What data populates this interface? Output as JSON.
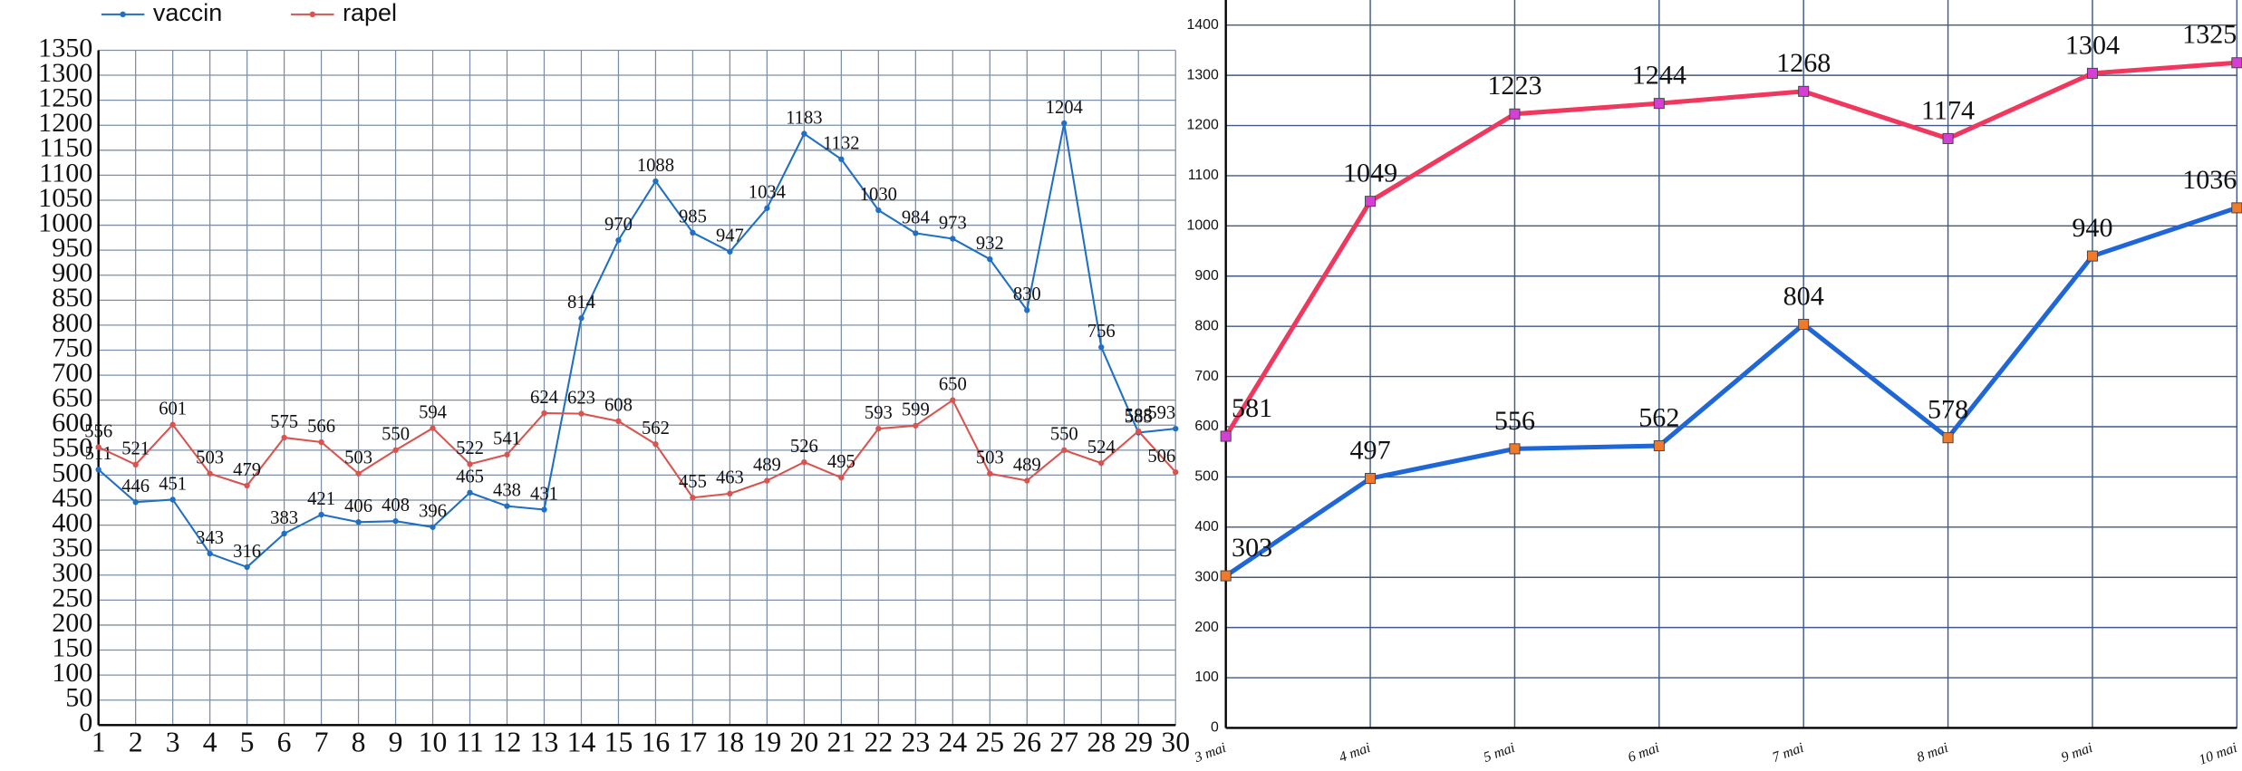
{
  "chart_data": [
    {
      "type": "line",
      "categories": [
        "1",
        "2",
        "3",
        "4",
        "5",
        "6",
        "7",
        "8",
        "9",
        "10",
        "11",
        "12",
        "13",
        "14",
        "15",
        "16",
        "17",
        "18",
        "19",
        "20",
        "21",
        "22",
        "23",
        "24",
        "25",
        "26",
        "27",
        "28",
        "29",
        "30"
      ],
      "series": [
        {
          "name": "vaccin",
          "color": "#1f6fc5",
          "values": [
            511,
            446,
            451,
            343,
            316,
            383,
            421,
            406,
            408,
            396,
            465,
            438,
            431,
            814,
            970,
            1088,
            985,
            947,
            1034,
            1183,
            1132,
            1030,
            984,
            973,
            932,
            830,
            1204,
            756,
            585,
            593
          ]
        },
        {
          "name": "rapel",
          "color": "#d9534f",
          "values": [
            556,
            521,
            601,
            503,
            479,
            575,
            566,
            503,
            550,
            594,
            522,
            541,
            624,
            623,
            608,
            562,
            455,
            463,
            489,
            526,
            495,
            593,
            599,
            650,
            503,
            489,
            550,
            524,
            588,
            506
          ]
        }
      ],
      "ylim": [
        0,
        1350
      ],
      "yticks": [
        0,
        50,
        100,
        150,
        200,
        250,
        300,
        350,
        400,
        450,
        500,
        550,
        600,
        650,
        700,
        750,
        800,
        850,
        900,
        950,
        1000,
        1050,
        1100,
        1150,
        1200,
        1250,
        1300,
        1350
      ],
      "grid": true,
      "legend": "top-left"
    },
    {
      "type": "line",
      "categories": [
        "3 mai",
        "4 mai",
        "5 mai",
        "6 mai",
        "7 mai",
        "8 mai",
        "9 mai",
        "10 mai"
      ],
      "series": [
        {
          "color": "#f0385f",
          "marker_color": "#d63fd6",
          "values": [
            581,
            1049,
            1223,
            1244,
            1268,
            1174,
            1304,
            1325
          ]
        },
        {
          "color": "#1f66d6",
          "marker_color": "#f07a2a",
          "values": [
            303,
            497,
            556,
            562,
            804,
            578,
            940,
            1036
          ]
        }
      ],
      "ylim": [
        0,
        1450
      ],
      "yticks": [
        0,
        100,
        200,
        300,
        400,
        500,
        600,
        700,
        800,
        900,
        1000,
        1100,
        1200,
        1300,
        1400
      ],
      "grid": true
    }
  ]
}
